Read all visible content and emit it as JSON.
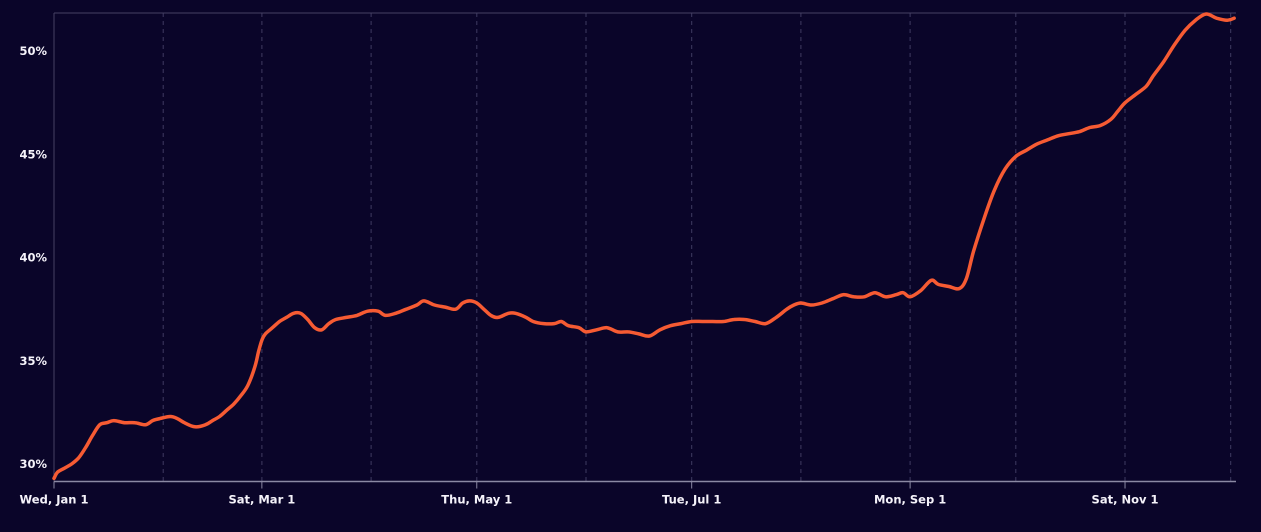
{
  "chart_data": {
    "type": "line",
    "title": "",
    "xlabel": "",
    "ylabel": "",
    "unit": "%",
    "legend": "none",
    "grid": "vertical-dashed-monthly",
    "ylim": [
      29.15,
      51.85
    ],
    "x_range_days": [
      0,
      335.5
    ],
    "y_ticks": [
      {
        "value": 30,
        "label": "30%"
      },
      {
        "value": 35,
        "label": "35%"
      },
      {
        "value": 40,
        "label": "40%"
      },
      {
        "value": 45,
        "label": "45%"
      },
      {
        "value": 50,
        "label": "50%"
      }
    ],
    "x_gridlines": [
      {
        "day": 0,
        "label": "Wed, Jan 1",
        "labeled": true
      },
      {
        "day": 31,
        "label": "",
        "labeled": false
      },
      {
        "day": 59,
        "label": "Sat, Mar 1",
        "labeled": true
      },
      {
        "day": 90,
        "label": "",
        "labeled": false
      },
      {
        "day": 120,
        "label": "Thu, May 1",
        "labeled": true
      },
      {
        "day": 151,
        "label": "",
        "labeled": false
      },
      {
        "day": 181,
        "label": "Tue, Jul 1",
        "labeled": true
      },
      {
        "day": 212,
        "label": "",
        "labeled": false
      },
      {
        "day": 243,
        "label": "Mon, Sep 1",
        "labeled": true
      },
      {
        "day": 273,
        "label": "",
        "labeled": false
      },
      {
        "day": 304,
        "label": "Sat, Nov 1",
        "labeled": true
      },
      {
        "day": 334,
        "label": "",
        "labeled": false
      }
    ],
    "colors": {
      "line": "#f65b33",
      "background": "#0a0529",
      "gridline": "#3f3b61",
      "axis_line": "#8b89a4",
      "top_border": "#464164",
      "left_border": "#464164",
      "tick": "#8b89a4",
      "label": "#f5f3fa"
    },
    "points_format": [
      "day_offset",
      "date",
      "percent"
    ],
    "series": [
      {
        "name": "value",
        "points": [
          [
            0,
            "Jan 1",
            29.3
          ],
          [
            1,
            "Jan 2",
            29.6
          ],
          [
            3,
            "Jan 4",
            29.8
          ],
          [
            5,
            "Jan 6",
            30.0
          ],
          [
            7,
            "Jan 8",
            30.3
          ],
          [
            9,
            "Jan 10",
            30.8
          ],
          [
            11,
            "Jan 12",
            31.4
          ],
          [
            13,
            "Jan 14",
            31.9
          ],
          [
            15,
            "Jan 16",
            32.0
          ],
          [
            17,
            "Jan 18",
            32.1
          ],
          [
            20,
            "Jan 21",
            32.0
          ],
          [
            23,
            "Jan 24",
            32.0
          ],
          [
            26,
            "Jan 27",
            31.9
          ],
          [
            28,
            "Jan 29",
            32.1
          ],
          [
            30,
            "Jan 31",
            32.2
          ],
          [
            33,
            "Feb 3",
            32.3
          ],
          [
            35,
            "Feb 5",
            32.2
          ],
          [
            37,
            "Feb 7",
            32.0
          ],
          [
            40,
            "Feb 10",
            31.8
          ],
          [
            43,
            "Feb 13",
            31.9
          ],
          [
            45,
            "Feb 15",
            32.1
          ],
          [
            47,
            "Feb 17",
            32.3
          ],
          [
            49,
            "Feb 19",
            32.6
          ],
          [
            51,
            "Feb 21",
            32.9
          ],
          [
            53,
            "Feb 23",
            33.3
          ],
          [
            55,
            "Feb 25",
            33.8
          ],
          [
            57,
            "Feb 27",
            34.7
          ],
          [
            58,
            "Feb 28",
            35.4
          ],
          [
            59,
            "Mar 1",
            36.0
          ],
          [
            60,
            "Mar 2",
            36.3
          ],
          [
            62,
            "Mar 4",
            36.6
          ],
          [
            64,
            "Mar 6",
            36.9
          ],
          [
            66,
            "Mar 8",
            37.1
          ],
          [
            68,
            "Mar 10",
            37.3
          ],
          [
            70,
            "Mar 12",
            37.3
          ],
          [
            72,
            "Mar 14",
            37.0
          ],
          [
            74,
            "Mar 16",
            36.6
          ],
          [
            76,
            "Mar 18",
            36.5
          ],
          [
            78,
            "Mar 20",
            36.8
          ],
          [
            80,
            "Mar 22",
            37.0
          ],
          [
            83,
            "Mar 25",
            37.1
          ],
          [
            86,
            "Mar 28",
            37.2
          ],
          [
            89,
            "Mar 31",
            37.4
          ],
          [
            92,
            "Apr 3",
            37.4
          ],
          [
            94,
            "Apr 5",
            37.2
          ],
          [
            97,
            "Apr 8",
            37.3
          ],
          [
            100,
            "Apr 11",
            37.5
          ],
          [
            103,
            "Apr 14",
            37.7
          ],
          [
            105,
            "Apr 16",
            37.9
          ],
          [
            108,
            "Apr 19",
            37.7
          ],
          [
            111,
            "Apr 22",
            37.6
          ],
          [
            114,
            "Apr 25",
            37.5
          ],
          [
            116,
            "Apr 27",
            37.8
          ],
          [
            118,
            "Apr 29",
            37.9
          ],
          [
            120,
            "May 1",
            37.8
          ],
          [
            122,
            "May 3",
            37.5
          ],
          [
            124,
            "May 5",
            37.2
          ],
          [
            126,
            "May 7",
            37.1
          ],
          [
            129,
            "May 10",
            37.3
          ],
          [
            131,
            "May 12",
            37.3
          ],
          [
            134,
            "May 15",
            37.1
          ],
          [
            136,
            "May 17",
            36.9
          ],
          [
            139,
            "May 20",
            36.8
          ],
          [
            142,
            "May 23",
            36.8
          ],
          [
            144,
            "May 25",
            36.9
          ],
          [
            146,
            "May 27",
            36.7
          ],
          [
            149,
            "May 30",
            36.6
          ],
          [
            151,
            "Jun 1",
            36.4
          ],
          [
            154,
            "Jun 4",
            36.5
          ],
          [
            157,
            "Jun 7",
            36.6
          ],
          [
            160,
            "Jun 10",
            36.4
          ],
          [
            163,
            "Jun 13",
            36.4
          ],
          [
            166,
            "Jun 16",
            36.3
          ],
          [
            169,
            "Jun 19",
            36.2
          ],
          [
            172,
            "Jun 22",
            36.5
          ],
          [
            175,
            "Jun 25",
            36.7
          ],
          [
            178,
            "Jun 28",
            36.8
          ],
          [
            181,
            "Jul 1",
            36.9
          ],
          [
            184,
            "Jul 4",
            36.9
          ],
          [
            187,
            "Jul 7",
            36.9
          ],
          [
            190,
            "Jul 10",
            36.9
          ],
          [
            193,
            "Jul 13",
            37.0
          ],
          [
            196,
            "Jul 16",
            37.0
          ],
          [
            199,
            "Jul 19",
            36.9
          ],
          [
            202,
            "Jul 22",
            36.8
          ],
          [
            205,
            "Jul 25",
            37.1
          ],
          [
            208,
            "Jul 28",
            37.5
          ],
          [
            210,
            "Jul 30",
            37.7
          ],
          [
            212,
            "Aug 1",
            37.8
          ],
          [
            215,
            "Aug 4",
            37.7
          ],
          [
            218,
            "Aug 7",
            37.8
          ],
          [
            221,
            "Aug 10",
            38.0
          ],
          [
            224,
            "Aug 13",
            38.2
          ],
          [
            227,
            "Aug 16",
            38.1
          ],
          [
            230,
            "Aug 19",
            38.1
          ],
          [
            233,
            "Aug 22",
            38.3
          ],
          [
            236,
            "Aug 25",
            38.1
          ],
          [
            239,
            "Aug 28",
            38.2
          ],
          [
            241,
            "Aug 30",
            38.3
          ],
          [
            243,
            "Sep 1",
            38.1
          ],
          [
            246,
            "Sep 4",
            38.4
          ],
          [
            249,
            "Sep 7",
            38.9
          ],
          [
            251,
            "Sep 9",
            38.7
          ],
          [
            254,
            "Sep 12",
            38.6
          ],
          [
            257,
            "Sep 15",
            38.5
          ],
          [
            259,
            "Sep 17",
            39.0
          ],
          [
            261,
            "Sep 19",
            40.3
          ],
          [
            264,
            "Sep 22",
            41.9
          ],
          [
            267,
            "Sep 25",
            43.3
          ],
          [
            270,
            "Sep 28",
            44.3
          ],
          [
            273,
            "Oct 1",
            44.9
          ],
          [
            276,
            "Oct 4",
            45.2
          ],
          [
            279,
            "Oct 7",
            45.5
          ],
          [
            282,
            "Oct 10",
            45.7
          ],
          [
            285,
            "Oct 13",
            45.9
          ],
          [
            288,
            "Oct 16",
            46.0
          ],
          [
            291,
            "Oct 19",
            46.1
          ],
          [
            294,
            "Oct 22",
            46.3
          ],
          [
            297,
            "Oct 25",
            46.4
          ],
          [
            300,
            "Oct 28",
            46.7
          ],
          [
            302,
            "Oct 30",
            47.1
          ],
          [
            304,
            "Nov 1",
            47.5
          ],
          [
            307,
            "Nov 4",
            47.9
          ],
          [
            310,
            "Nov 7",
            48.3
          ],
          [
            312,
            "Nov 9",
            48.8
          ],
          [
            315,
            "Nov 12",
            49.5
          ],
          [
            318,
            "Nov 15",
            50.3
          ],
          [
            321,
            "Nov 18",
            51.0
          ],
          [
            324,
            "Nov 21",
            51.5
          ],
          [
            327,
            "Nov 24",
            51.8
          ],
          [
            330,
            "Nov 27",
            51.6
          ],
          [
            333,
            "Nov 30",
            51.5
          ],
          [
            335,
            "Dec 2",
            51.6
          ]
        ]
      }
    ]
  }
}
